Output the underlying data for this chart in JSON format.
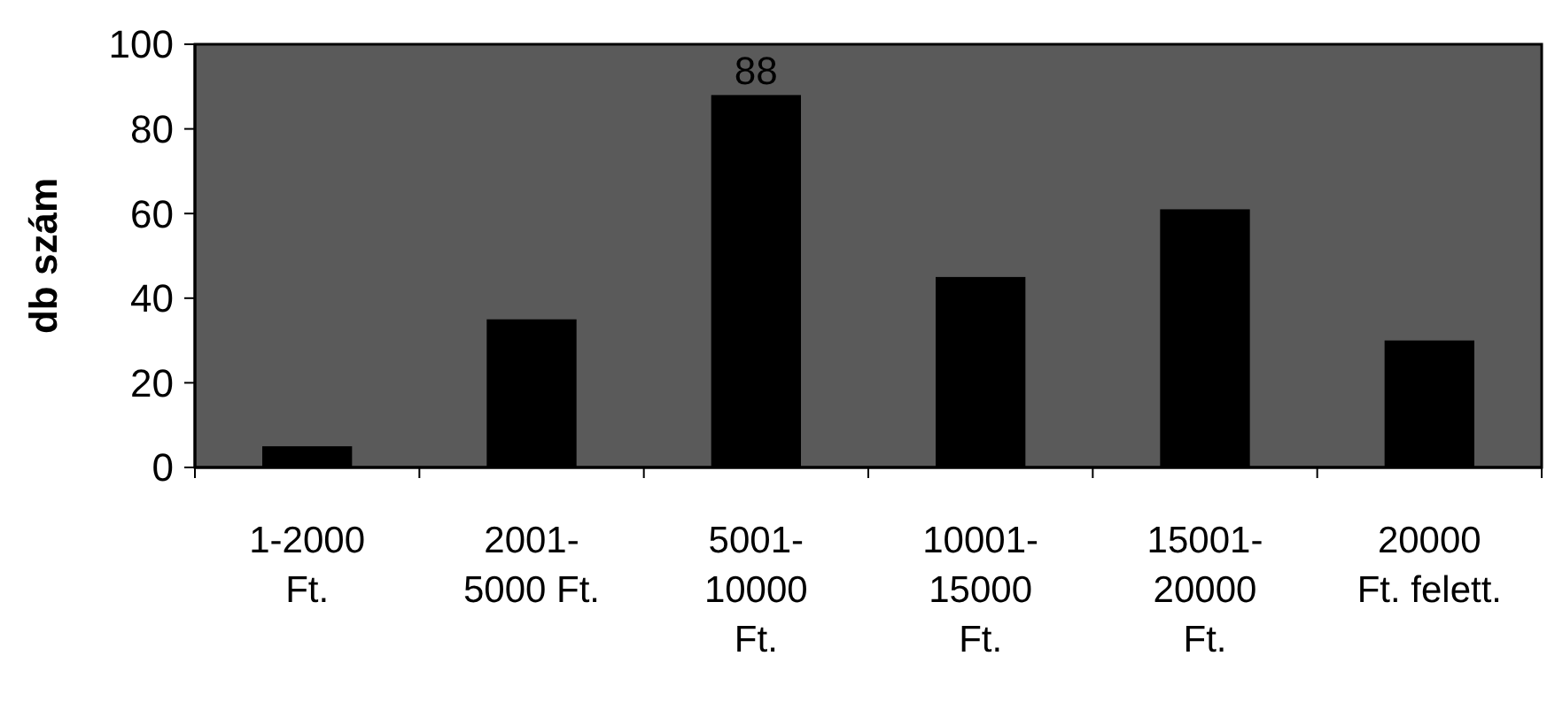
{
  "chart_data": {
    "type": "bar",
    "ylabel": "db szám",
    "categories": [
      "1-2000 Ft.",
      "2001-5000 Ft.",
      "5001-10000 Ft.",
      "10001-15000 Ft.",
      "15001-20000 Ft.",
      "20000 Ft. felett."
    ],
    "values": [
      5,
      35,
      88,
      45,
      61,
      30
    ],
    "value_labels": [
      null,
      null,
      "88",
      null,
      null,
      null
    ],
    "color": "#000000",
    "ylim": [
      0,
      100
    ],
    "yticks": [
      0,
      20,
      40,
      60,
      80,
      100
    ]
  }
}
